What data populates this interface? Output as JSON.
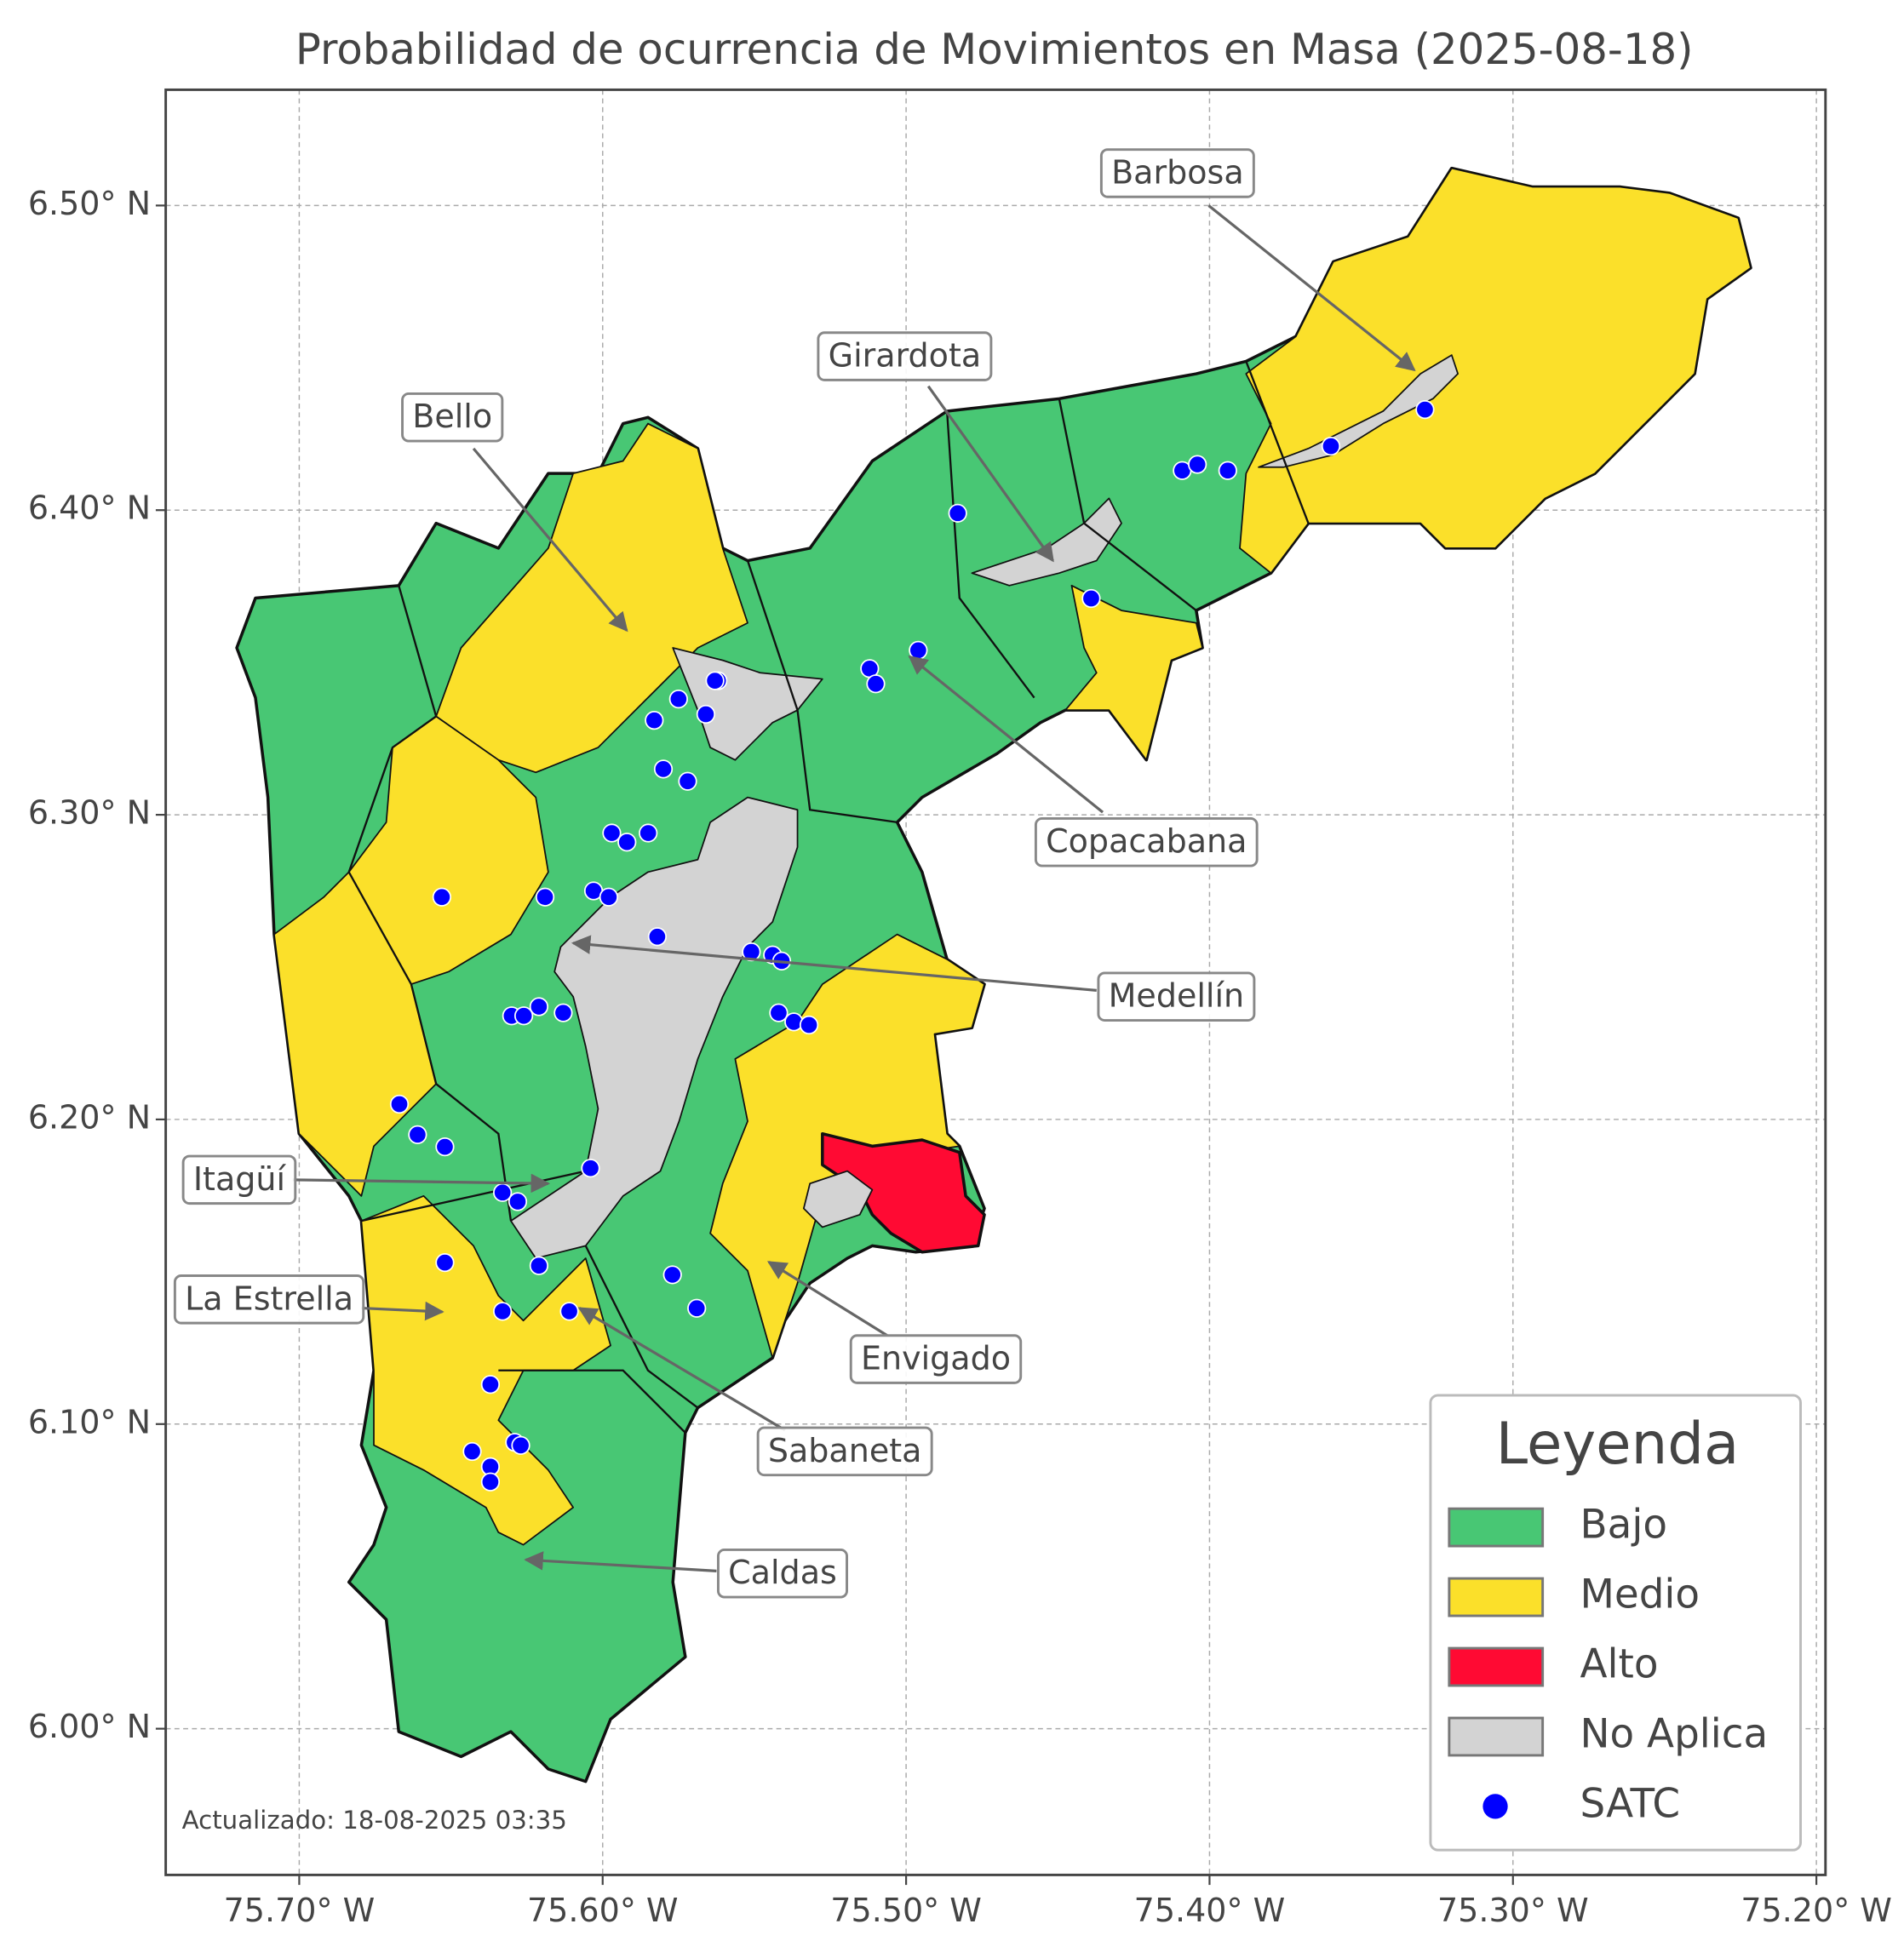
{
  "map": {
    "title": "Probabilidad de ocurrencia de Movimientos en Masa (2025-08-18)",
    "xlim": [
      -75.744,
      -75.197
    ],
    "ylim": [
      5.952,
      6.538
    ],
    "xticks": [
      {
        "value": -75.7,
        "label": "75.70° W"
      },
      {
        "value": -75.6,
        "label": "75.60° W"
      },
      {
        "value": -75.5,
        "label": "75.50° W"
      },
      {
        "value": -75.4,
        "label": "75.40° W"
      },
      {
        "value": -75.3,
        "label": "75.30° W"
      },
      {
        "value": -75.2,
        "label": "75.20° W"
      }
    ],
    "yticks": [
      {
        "value": 6.0,
        "label": "6.00° N"
      },
      {
        "value": 6.1,
        "label": "6.10° N"
      },
      {
        "value": 6.2,
        "label": "6.20° N"
      },
      {
        "value": 6.3,
        "label": "6.30° N"
      },
      {
        "value": 6.4,
        "label": "6.40° N"
      },
      {
        "value": 6.5,
        "label": "6.50° N"
      }
    ],
    "grid": true,
    "municipalities": [
      "Barbosa",
      "Girardota",
      "Bello",
      "Copacabana",
      "Medellín",
      "Itagüí",
      "La Estrella",
      "Envigado",
      "Sabaneta",
      "Caldas"
    ],
    "legend": {
      "title": "Leyenda",
      "items": [
        {
          "label": "Bajo",
          "color": "#48c774"
        },
        {
          "label": "Medio",
          "color": "#fbe02a"
        },
        {
          "label": "Alto",
          "color": "#ff0a33"
        },
        {
          "label": "No Aplica",
          "color": "#d3d3d3"
        },
        {
          "label": "SATC",
          "color": "#0000ff"
        }
      ]
    },
    "stations": {
      "lon": [
        -75.329,
        -75.36,
        -75.409,
        -75.404,
        -75.394,
        -75.483,
        -75.439,
        -75.496,
        -75.512,
        -75.51,
        -75.562,
        -75.563,
        -75.575,
        -75.566,
        -75.583,
        -75.58,
        -75.572,
        -75.597,
        -75.592,
        -75.585,
        -75.619,
        -75.603,
        -75.598,
        -75.653,
        -75.582,
        -75.551,
        -75.544,
        -75.541,
        -75.542,
        -75.537,
        -75.532,
        -75.621,
        -75.613,
        -75.63,
        -75.626,
        -75.667,
        -75.661,
        -75.652,
        -75.604,
        -75.633,
        -75.628,
        -75.652,
        -75.621,
        -75.577,
        -75.569,
        -75.611,
        -75.633,
        -75.637,
        -75.643,
        -75.629,
        -75.627,
        -75.637,
        -75.637
      ],
      "lat": [
        6.433,
        6.421,
        6.413,
        6.415,
        6.413,
        6.399,
        6.371,
        6.354,
        6.348,
        6.343,
        6.344,
        6.344,
        6.338,
        6.333,
        6.331,
        6.315,
        6.311,
        6.294,
        6.291,
        6.294,
        6.273,
        6.275,
        6.273,
        6.273,
        6.26,
        6.255,
        6.254,
        6.252,
        6.235,
        6.232,
        6.231,
        6.237,
        6.235,
        6.234,
        6.234,
        6.205,
        6.195,
        6.191,
        6.184,
        6.176,
        6.173,
        6.153,
        6.152,
        6.149,
        6.138,
        6.137,
        6.137,
        6.113,
        6.091,
        6.094,
        6.093,
        6.086,
        6.081
      ]
    },
    "footnote": "Actualizado: 18-08-2025 03:35"
  }
}
